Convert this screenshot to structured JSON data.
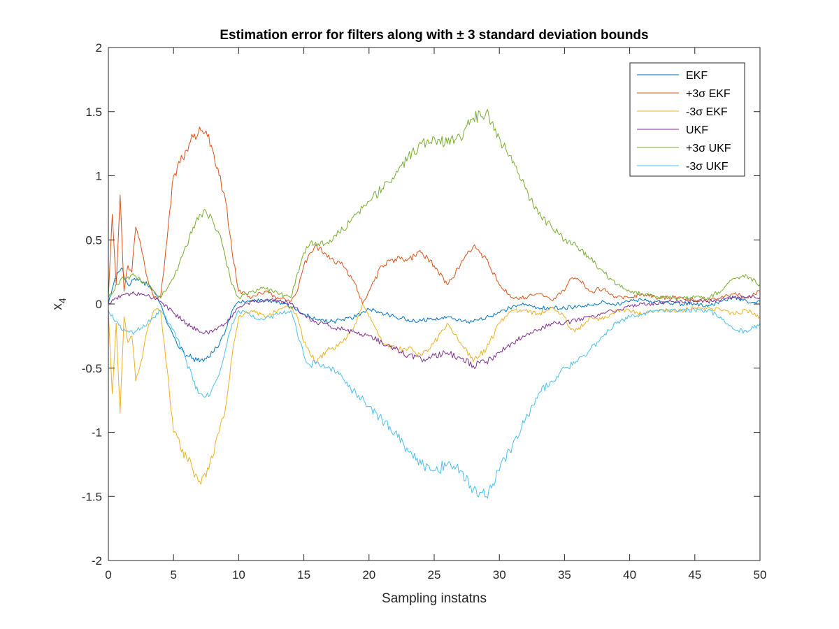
{
  "chart_data": {
    "type": "line",
    "title": "Estimation error for filters along with ± 3 standard deviation bounds",
    "xlabel": "Sampling instatns",
    "ylabel_base": "x",
    "ylabel_sub": "4",
    "xlim": [
      0,
      50
    ],
    "ylim": [
      -2,
      2
    ],
    "xticks": [
      0,
      5,
      10,
      15,
      20,
      25,
      30,
      35,
      40,
      45,
      50
    ],
    "yticks": [
      -2,
      -1.5,
      -1,
      -0.5,
      0,
      0.5,
      1,
      1.5,
      2
    ],
    "xtick_labels": [
      "0",
      "5",
      "10",
      "15",
      "20",
      "25",
      "30",
      "35",
      "40",
      "45",
      "50"
    ],
    "ytick_labels": [
      "-2",
      "-1.5",
      "-1",
      "-0.5",
      "0",
      "0.5",
      "1",
      "1.5",
      "2"
    ],
    "grid": false,
    "legend_position": "top-right",
    "series": [
      {
        "name": "EKF",
        "color": "#0072BD",
        "x": [
          0,
          0.5,
          1,
          1.5,
          2,
          2.5,
          3,
          3.5,
          4,
          4.5,
          5,
          5.5,
          6,
          6.5,
          7,
          7.5,
          8,
          8.5,
          9,
          9.5,
          10,
          11,
          12,
          13,
          14,
          15,
          16,
          17,
          18,
          19,
          20,
          21,
          22,
          23,
          24,
          25,
          26,
          27,
          28,
          29,
          30,
          31,
          32,
          33,
          34,
          35,
          36,
          37,
          38,
          39,
          40,
          41,
          42,
          43,
          44,
          45,
          46,
          47,
          48,
          49,
          50
        ],
        "y": [
          0.0,
          0.2,
          0.28,
          0.15,
          0.2,
          0.18,
          0.15,
          0.1,
          0.0,
          -0.15,
          -0.25,
          -0.35,
          -0.4,
          -0.42,
          -0.45,
          -0.43,
          -0.38,
          -0.32,
          -0.2,
          -0.05,
          0.02,
          0.03,
          0.02,
          0.02,
          -0.02,
          -0.08,
          -0.12,
          -0.14,
          -0.12,
          -0.1,
          -0.04,
          -0.07,
          -0.1,
          -0.12,
          -0.13,
          -0.12,
          -0.1,
          -0.12,
          -0.14,
          -0.1,
          -0.07,
          -0.02,
          0.0,
          -0.03,
          -0.03,
          -0.03,
          -0.02,
          -0.01,
          0.02,
          0.0,
          0.02,
          0.03,
          0.02,
          0.01,
          0.0,
          0.0,
          -0.02,
          0.02,
          0.05,
          0.02,
          0.02
        ]
      },
      {
        "name": "+3σ EKF",
        "color": "#D95319",
        "x": [
          0,
          0.3,
          0.6,
          0.9,
          1.2,
          1.5,
          1.8,
          2.1,
          2.5,
          3,
          3.5,
          4,
          4.5,
          5,
          5.5,
          6,
          6.5,
          7,
          7.5,
          8,
          8.5,
          9,
          9.5,
          10,
          11,
          12,
          13,
          14,
          14.5,
          15,
          15.5,
          16,
          17,
          18,
          19,
          19.5,
          20,
          21,
          22,
          23,
          24,
          25,
          26,
          27,
          28,
          29,
          30,
          31,
          32,
          33,
          34,
          35,
          35.5,
          36,
          37,
          38,
          39,
          40,
          41,
          42,
          43,
          44,
          45,
          46,
          47,
          48,
          49,
          50
        ],
        "y": [
          0.05,
          0.7,
          0.15,
          0.85,
          0.1,
          0.3,
          0.25,
          0.6,
          0.45,
          0.2,
          0.05,
          0.05,
          0.5,
          1.0,
          1.1,
          1.2,
          1.3,
          1.38,
          1.35,
          1.2,
          1.0,
          0.8,
          0.4,
          0.1,
          0.05,
          0.1,
          0.05,
          0.02,
          0.1,
          0.3,
          0.4,
          0.45,
          0.35,
          0.3,
          0.15,
          0.0,
          0.1,
          0.3,
          0.35,
          0.35,
          0.4,
          0.3,
          0.15,
          0.3,
          0.45,
          0.35,
          0.15,
          0.05,
          0.05,
          0.08,
          0.03,
          0.1,
          0.2,
          0.2,
          0.1,
          0.12,
          0.05,
          0.05,
          0.08,
          0.05,
          0.05,
          0.05,
          0.03,
          0.03,
          0.05,
          0.08,
          0.05,
          0.1
        ]
      },
      {
        "name": "-3σ EKF",
        "color": "#EDB120",
        "x": [
          0,
          0.3,
          0.6,
          0.9,
          1.2,
          1.5,
          1.8,
          2.1,
          2.5,
          3,
          3.5,
          4,
          4.5,
          5,
          5.5,
          6,
          6.5,
          7,
          7.5,
          8,
          8.5,
          9,
          9.5,
          10,
          11,
          12,
          13,
          14,
          14.5,
          15,
          15.5,
          16,
          17,
          18,
          19,
          19.5,
          20,
          21,
          22,
          23,
          24,
          25,
          26,
          27,
          28,
          29,
          30,
          31,
          32,
          33,
          34,
          35,
          35.5,
          36,
          37,
          38,
          39,
          40,
          41,
          42,
          43,
          44,
          45,
          46,
          47,
          48,
          49,
          50
        ],
        "y": [
          -0.05,
          -0.7,
          -0.15,
          -0.85,
          -0.1,
          -0.3,
          -0.25,
          -0.6,
          -0.45,
          -0.2,
          -0.05,
          -0.05,
          -0.5,
          -1.0,
          -1.1,
          -1.2,
          -1.3,
          -1.38,
          -1.35,
          -1.2,
          -1.0,
          -0.8,
          -0.4,
          -0.1,
          -0.05,
          -0.1,
          -0.05,
          -0.02,
          -0.1,
          -0.3,
          -0.4,
          -0.45,
          -0.35,
          -0.3,
          -0.15,
          0.0,
          -0.1,
          -0.3,
          -0.35,
          -0.35,
          -0.4,
          -0.3,
          -0.15,
          -0.3,
          -0.45,
          -0.35,
          -0.15,
          -0.05,
          -0.05,
          -0.08,
          -0.03,
          -0.1,
          -0.2,
          -0.2,
          -0.1,
          -0.12,
          -0.05,
          -0.05,
          -0.08,
          -0.05,
          -0.05,
          -0.05,
          -0.03,
          -0.03,
          -0.05,
          -0.08,
          -0.05,
          -0.1
        ]
      },
      {
        "name": "UKF",
        "color": "#7E2F8E",
        "x": [
          0,
          1,
          2,
          3,
          4,
          5,
          6,
          7,
          8,
          9,
          10,
          11,
          12,
          13,
          14,
          15,
          16,
          17,
          18,
          19,
          20,
          21,
          22,
          23,
          24,
          25,
          26,
          27,
          28,
          29,
          30,
          31,
          32,
          33,
          34,
          35,
          36,
          37,
          38,
          39,
          40,
          41,
          42,
          43,
          44,
          45,
          46,
          47,
          48,
          49,
          50
        ],
        "y": [
          0.0,
          0.07,
          0.08,
          0.07,
          0.02,
          -0.07,
          -0.15,
          -0.22,
          -0.22,
          -0.15,
          -0.03,
          0.02,
          0.03,
          0.03,
          0.0,
          -0.08,
          -0.15,
          -0.17,
          -0.2,
          -0.22,
          -0.25,
          -0.3,
          -0.35,
          -0.4,
          -0.43,
          -0.4,
          -0.38,
          -0.42,
          -0.48,
          -0.45,
          -0.38,
          -0.3,
          -0.25,
          -0.2,
          -0.15,
          -0.15,
          -0.12,
          -0.1,
          -0.07,
          -0.05,
          -0.02,
          0.0,
          0.0,
          0.02,
          0.02,
          0.02,
          0.02,
          0.03,
          0.05,
          0.05,
          0.05
        ]
      },
      {
        "name": "+3σ UKF",
        "color": "#77AC30",
        "x": [
          0,
          1,
          2,
          3,
          4,
          5,
          6,
          6.5,
          7,
          7.5,
          8,
          8.5,
          9,
          9.5,
          10,
          11,
          12,
          13,
          14,
          15,
          15.5,
          16,
          17,
          18,
          19,
          20,
          21,
          22,
          23,
          24,
          25,
          26,
          27,
          28,
          29,
          30,
          31,
          32,
          33,
          34,
          35,
          36,
          37,
          38,
          39,
          40,
          41,
          42,
          43,
          44,
          45,
          46,
          47,
          48,
          49,
          50
        ],
        "y": [
          0.05,
          0.2,
          0.22,
          0.15,
          0.05,
          0.2,
          0.45,
          0.6,
          0.7,
          0.72,
          0.65,
          0.55,
          0.35,
          0.15,
          0.05,
          0.1,
          0.12,
          0.08,
          0.05,
          0.4,
          0.48,
          0.45,
          0.5,
          0.58,
          0.7,
          0.8,
          0.9,
          1.0,
          1.15,
          1.25,
          1.3,
          1.25,
          1.3,
          1.45,
          1.5,
          1.3,
          1.1,
          0.9,
          0.7,
          0.6,
          0.5,
          0.45,
          0.35,
          0.25,
          0.15,
          0.1,
          0.08,
          0.05,
          0.05,
          0.05,
          0.05,
          0.05,
          0.1,
          0.2,
          0.22,
          0.15
        ]
      },
      {
        "name": "-3σ UKF",
        "color": "#4DBEEE",
        "x": [
          0,
          1,
          2,
          3,
          4,
          5,
          6,
          6.5,
          7,
          7.5,
          8,
          8.5,
          9,
          9.5,
          10,
          11,
          12,
          13,
          14,
          15,
          15.5,
          16,
          17,
          18,
          19,
          20,
          21,
          22,
          23,
          24,
          25,
          26,
          27,
          28,
          29,
          30,
          31,
          32,
          33,
          34,
          35,
          36,
          37,
          38,
          39,
          40,
          41,
          42,
          43,
          44,
          45,
          46,
          47,
          48,
          49,
          50
        ],
        "y": [
          -0.05,
          -0.2,
          -0.22,
          -0.15,
          -0.05,
          -0.2,
          -0.45,
          -0.6,
          -0.7,
          -0.72,
          -0.65,
          -0.55,
          -0.35,
          -0.15,
          -0.05,
          -0.1,
          -0.12,
          -0.08,
          -0.05,
          -0.4,
          -0.48,
          -0.45,
          -0.5,
          -0.58,
          -0.7,
          -0.8,
          -0.9,
          -1.0,
          -1.15,
          -1.25,
          -1.3,
          -1.25,
          -1.3,
          -1.45,
          -1.5,
          -1.3,
          -1.1,
          -0.9,
          -0.7,
          -0.6,
          -0.5,
          -0.45,
          -0.35,
          -0.25,
          -0.15,
          -0.1,
          -0.08,
          -0.05,
          -0.05,
          -0.05,
          -0.05,
          -0.05,
          -0.1,
          -0.2,
          -0.22,
          -0.15
        ]
      }
    ]
  }
}
